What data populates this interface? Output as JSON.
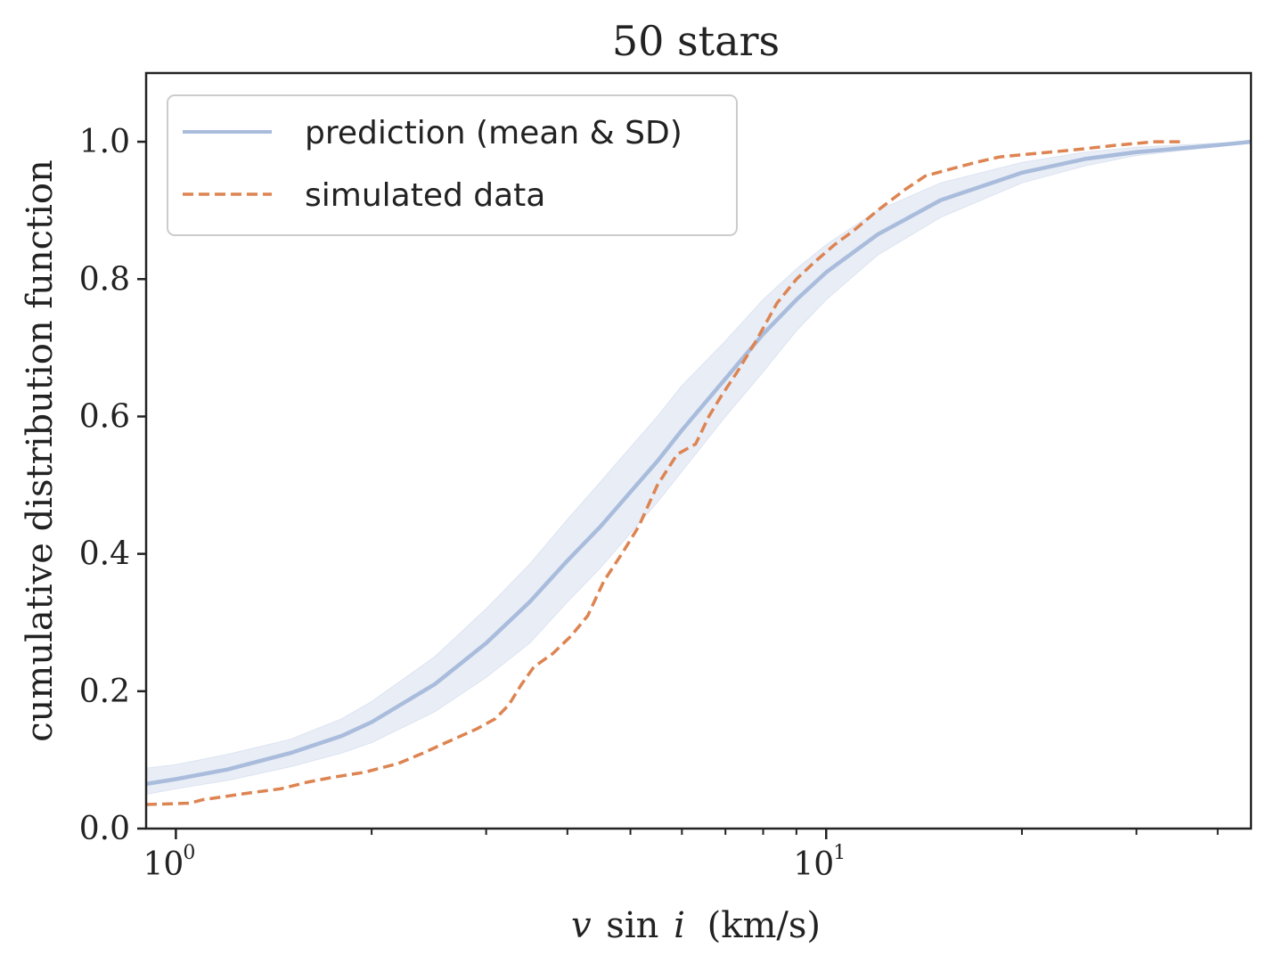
{
  "chart_data": {
    "type": "line",
    "title": "50 stars",
    "xlabel_parts": {
      "v": "v",
      "sin": "sin",
      "i": "i",
      "units": "(km/s)"
    },
    "ylabel": "cumulative distribution function",
    "xscale": "log",
    "xlim": [
      0.9,
      45
    ],
    "ylim": [
      0.0,
      1.1
    ],
    "grid": false,
    "legend_position": "top-left",
    "x_tick_labels": [
      {
        "value": 1,
        "base": "10",
        "exponent": "0"
      },
      {
        "value": 10,
        "base": "10",
        "exponent": "1"
      }
    ],
    "x_minor_ticks": [
      2,
      3,
      4,
      5,
      6,
      7,
      8,
      9,
      20,
      30,
      40
    ],
    "y_ticks": [
      {
        "value": 0.0,
        "label": "0.0"
      },
      {
        "value": 0.2,
        "label": "0.2"
      },
      {
        "value": 0.4,
        "label": "0.4"
      },
      {
        "value": 0.6,
        "label": "0.6"
      },
      {
        "value": 0.8,
        "label": "0.8"
      },
      {
        "value": 1.0,
        "label": "1.0"
      }
    ],
    "series": [
      {
        "name": "prediction (mean & SD)",
        "style": "solid",
        "color": "#a9bcdc",
        "band_color": "#e8edf6",
        "x": [
          0.9,
          1.0,
          1.2,
          1.5,
          1.8,
          2.0,
          2.5,
          3.0,
          3.5,
          4.0,
          4.5,
          5.0,
          5.5,
          6.0,
          7.0,
          8.0,
          9.0,
          10.0,
          12.0,
          15.0,
          20.0,
          25.0,
          30.0,
          40.0,
          45.0
        ],
        "mean": [
          0.065,
          0.072,
          0.086,
          0.11,
          0.135,
          0.155,
          0.21,
          0.27,
          0.33,
          0.39,
          0.44,
          0.49,
          0.535,
          0.58,
          0.655,
          0.72,
          0.77,
          0.81,
          0.865,
          0.915,
          0.955,
          0.975,
          0.985,
          0.995,
          1.0
        ],
        "lower": [
          0.05,
          0.058,
          0.07,
          0.09,
          0.11,
          0.125,
          0.17,
          0.22,
          0.27,
          0.33,
          0.38,
          0.43,
          0.475,
          0.52,
          0.6,
          0.665,
          0.725,
          0.77,
          0.835,
          0.89,
          0.94,
          0.965,
          0.98,
          0.993,
          1.0
        ],
        "upper": [
          0.088,
          0.093,
          0.108,
          0.13,
          0.16,
          0.185,
          0.25,
          0.32,
          0.385,
          0.45,
          0.505,
          0.555,
          0.6,
          0.645,
          0.71,
          0.77,
          0.815,
          0.85,
          0.9,
          0.94,
          0.97,
          0.985,
          0.992,
          0.998,
          1.0
        ]
      },
      {
        "name": "simulated data",
        "style": "dashed",
        "color": "#dd8452",
        "x": [
          0.9,
          1.05,
          1.1,
          1.3,
          1.45,
          1.6,
          1.75,
          1.95,
          2.2,
          2.4,
          2.6,
          2.9,
          3.1,
          3.25,
          3.4,
          3.55,
          3.8,
          4.05,
          4.3,
          4.55,
          4.85,
          5.15,
          5.5,
          5.9,
          6.3,
          6.6,
          6.9,
          7.3,
          7.8,
          8.4,
          9.0,
          9.6,
          10.3,
          11.0,
          12.0,
          13.2,
          14.2,
          15.5,
          17.0,
          18.5,
          21.0,
          24.0,
          28.0,
          32.0,
          35.0
        ],
        "y": [
          0.035,
          0.037,
          0.042,
          0.052,
          0.058,
          0.068,
          0.075,
          0.082,
          0.095,
          0.11,
          0.125,
          0.145,
          0.16,
          0.18,
          0.21,
          0.235,
          0.255,
          0.28,
          0.31,
          0.36,
          0.4,
          0.44,
          0.5,
          0.545,
          0.56,
          0.6,
          0.63,
          0.665,
          0.71,
          0.765,
          0.8,
          0.825,
          0.85,
          0.87,
          0.9,
          0.93,
          0.95,
          0.96,
          0.97,
          0.978,
          0.983,
          0.988,
          0.995,
          1.0,
          1.0
        ]
      }
    ]
  }
}
